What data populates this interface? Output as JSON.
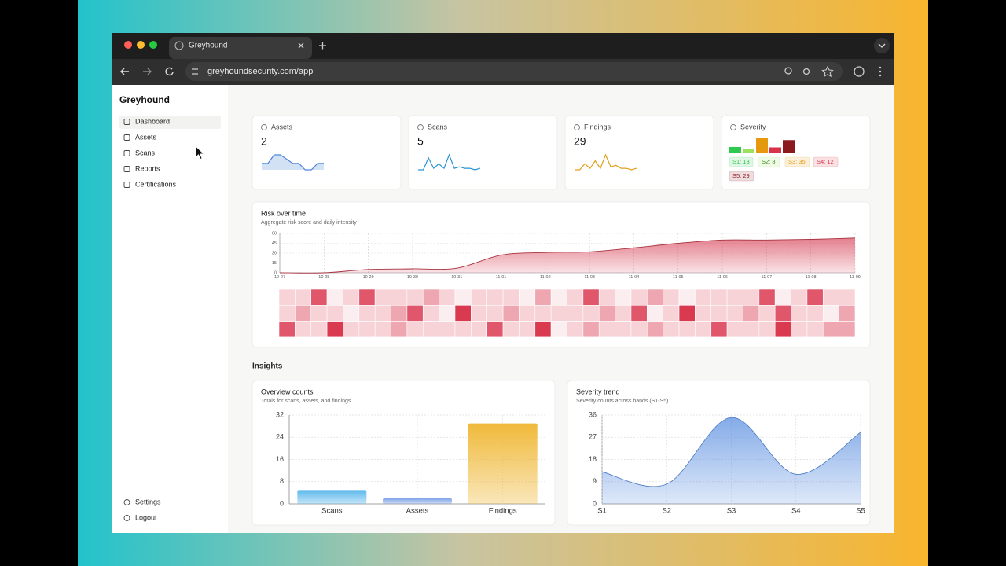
{
  "browser": {
    "tab_title": "Greyhound",
    "url": "greyhoundsecurity.com/app"
  },
  "sidebar": {
    "brand": "Greyhound",
    "nav": [
      "Dashboard",
      "Assets",
      "Scans",
      "Reports",
      "Certifications"
    ],
    "active": 0,
    "footer": [
      "Settings",
      "Logout"
    ]
  },
  "page_title": "Dashboard",
  "cards": [
    {
      "label": "Assets",
      "value": 2,
      "color": "#4f86d9",
      "spark": [
        3,
        3,
        7,
        7,
        5,
        3,
        3,
        0,
        0,
        3,
        3
      ]
    },
    {
      "label": "Scans",
      "value": 5,
      "color": "#2a93d5",
      "spark": [
        0,
        0,
        8,
        1,
        4,
        1,
        10,
        1,
        2,
        1,
        1,
        0,
        1
      ]
    },
    {
      "label": "Findings",
      "value": 29,
      "color": "#e0a11b",
      "spark": [
        0,
        0,
        4,
        1,
        6,
        1,
        10,
        2,
        3,
        1,
        1,
        0,
        1
      ]
    }
  ],
  "severity": {
    "label": "Severity",
    "categories": [
      "S1",
      "S2",
      "S3",
      "S4",
      "S5"
    ],
    "values": [
      13,
      8,
      35,
      12,
      29
    ],
    "value_labels": [
      "S1: 13",
      "S2: 8",
      "S3: 35",
      "S4: 12",
      "S5: 29"
    ],
    "colors": [
      "#2ec94e",
      "#9be15d",
      "#e59a0d",
      "#d9334a",
      "#8b1a1f"
    ]
  },
  "risk": {
    "type": "area",
    "title": "Risk over time",
    "subtitle": "Aggregate risk score and daily intensity",
    "x": [
      "10-27",
      "10-28",
      "10-29",
      "10-30",
      "10-31",
      "11-01",
      "11-02",
      "11-03",
      "11-04",
      "11-05",
      "11-06",
      "11-07",
      "11-08",
      "11-09"
    ],
    "values": [
      0,
      0,
      5,
      6,
      7,
      27,
      31,
      32,
      38,
      45,
      50,
      50,
      51,
      53
    ],
    "ylim": [
      0,
      60
    ],
    "yticks": [
      0,
      15,
      30,
      45,
      60
    ],
    "color": "#d9485d",
    "grid": true
  },
  "heatmap": {
    "colors": [
      "#fbeef0",
      "#f7d2d7",
      "#eea7b1",
      "#e0566b",
      "#d93a50"
    ],
    "rows": [
      [
        1,
        1,
        3,
        0,
        1,
        3,
        1,
        1,
        1,
        2,
        1,
        0,
        1,
        1,
        1,
        0,
        2,
        0,
        1,
        3,
        1,
        0,
        1,
        2,
        1,
        0,
        1,
        1,
        1,
        1,
        3,
        0,
        1,
        3,
        1,
        1
      ],
      [
        1,
        2,
        1,
        1,
        0,
        1,
        1,
        2,
        3,
        1,
        0,
        4,
        1,
        1,
        2,
        1,
        1,
        1,
        1,
        1,
        2,
        1,
        3,
        0,
        1,
        4,
        1,
        1,
        1,
        2,
        1,
        3,
        1,
        1,
        0,
        2
      ],
      [
        3,
        1,
        1,
        4,
        1,
        1,
        1,
        2,
        1,
        1,
        1,
        1,
        1,
        3,
        1,
        1,
        4,
        0,
        1,
        2,
        1,
        1,
        1,
        2,
        1,
        1,
        1,
        3,
        1,
        1,
        1,
        4,
        1,
        1,
        2,
        2
      ]
    ]
  },
  "insights": {
    "title": "Insights",
    "charts": [
      {
        "type": "bar",
        "title": "Overview counts",
        "subtitle": "Totals for scans, assets, and findings",
        "categories": [
          "Scans",
          "Assets",
          "Findings"
        ],
        "values": [
          5,
          2,
          29
        ],
        "colors": [
          "#5bb8ec",
          "#7fa3e8",
          "#f0b93a"
        ],
        "ylim": [
          0,
          32
        ],
        "yticks": [
          0,
          8,
          16,
          24,
          32
        ],
        "grid": true
      },
      {
        "type": "area",
        "title": "Severity trend",
        "subtitle": "Severity counts across bands (S1-S5)",
        "categories": [
          "S1",
          "S2",
          "S3",
          "S4",
          "S5"
        ],
        "values": [
          13,
          8,
          35,
          12,
          29
        ],
        "color": "#5b8fe0",
        "ylim": [
          0,
          36
        ],
        "yticks": [
          0,
          9,
          18,
          27,
          36
        ],
        "grid": true
      }
    ]
  }
}
